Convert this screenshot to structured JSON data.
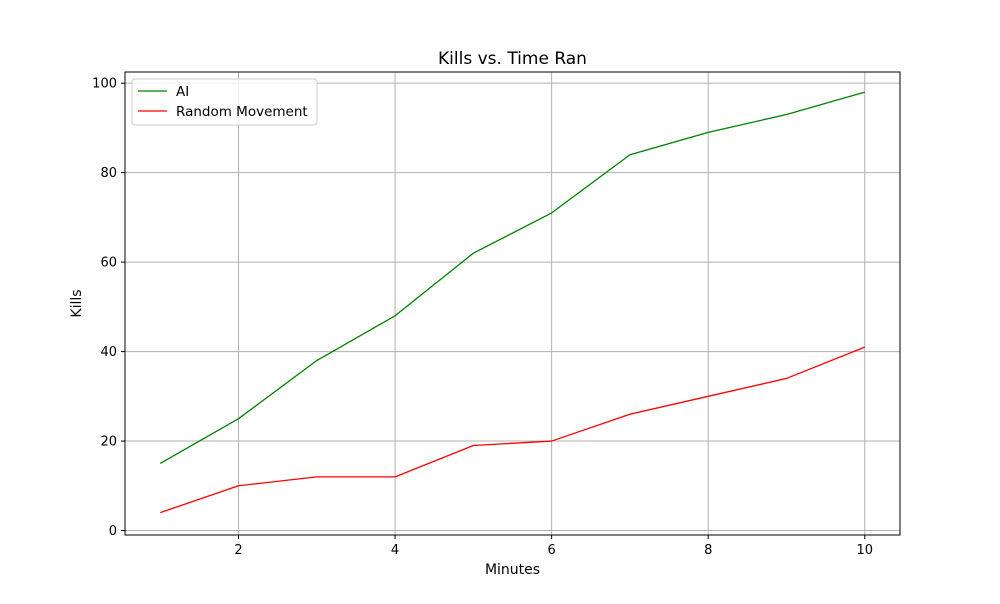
{
  "chart_data": {
    "type": "line",
    "title": "Kills vs. Time Ran",
    "xlabel": "Minutes",
    "ylabel": "Kills",
    "x": [
      1,
      2,
      3,
      4,
      5,
      6,
      7,
      8,
      9,
      10
    ],
    "xlim": [
      0.55,
      10.45
    ],
    "ylim": [
      -1,
      102.5
    ],
    "xticks": [
      2,
      4,
      6,
      8,
      10
    ],
    "yticks": [
      0,
      20,
      40,
      60,
      80,
      100
    ],
    "grid": true,
    "legend_position": "upper-left",
    "series": [
      {
        "name": "AI",
        "color": "#008000",
        "values": [
          15,
          25,
          38,
          48,
          62,
          71,
          84,
          89,
          93,
          98
        ]
      },
      {
        "name": "Random Movement",
        "color": "#ff0000",
        "values": [
          4,
          10,
          12,
          12,
          19,
          20,
          26,
          30,
          34,
          41
        ]
      }
    ]
  }
}
